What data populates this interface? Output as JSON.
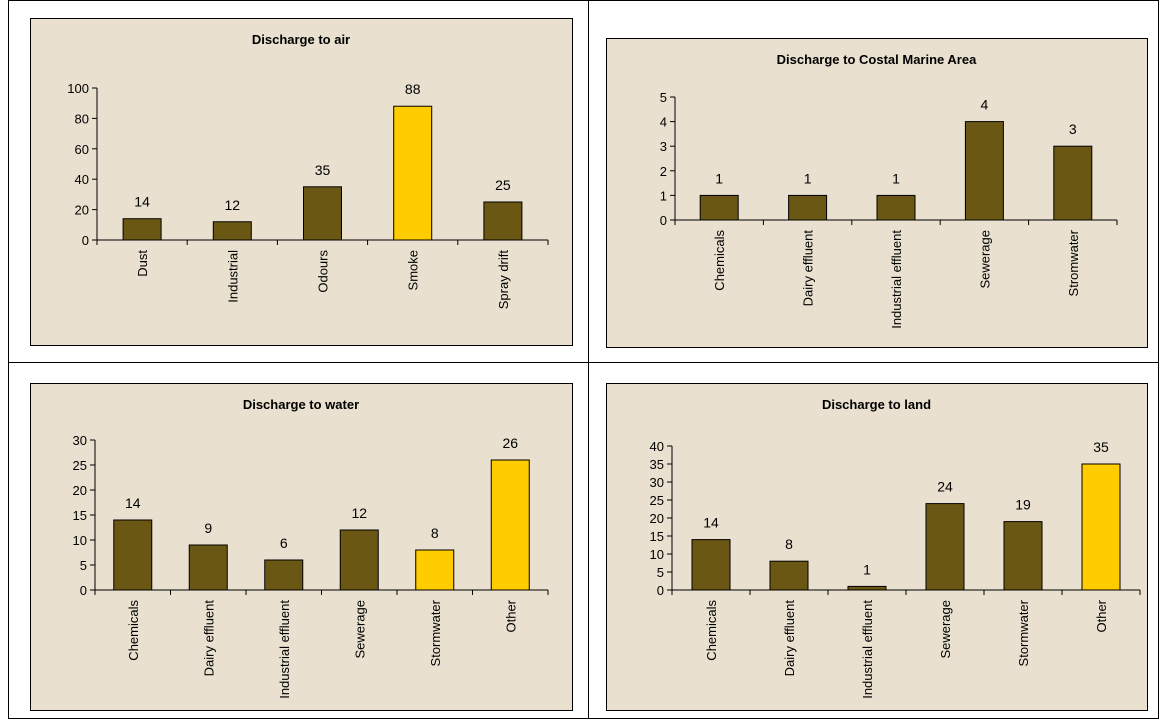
{
  "chart_data": [
    {
      "type": "bar",
      "title": "Discharge to air",
      "categories": [
        "Dust",
        "Industrial",
        "Odours",
        "Smoke",
        "Spray drift"
      ],
      "values": [
        14,
        12,
        35,
        88,
        25
      ],
      "colors": [
        "#6b5714",
        "#6b5714",
        "#6b5714",
        "#ffcc00",
        "#6b5714"
      ],
      "ylim": [
        0,
        100
      ],
      "yticks": [
        0,
        20,
        40,
        60,
        80,
        100
      ]
    },
    {
      "type": "bar",
      "title": "Discharge to Costal Marine Area",
      "categories": [
        "Chemicals",
        "Dairy effluent",
        "Industrial effluent",
        "Sewerage",
        "Stromwater"
      ],
      "values": [
        1,
        1,
        1,
        4,
        3
      ],
      "colors": [
        "#6b5714",
        "#6b5714",
        "#6b5714",
        "#6b5714",
        "#6b5714"
      ],
      "ylim": [
        0,
        5
      ],
      "yticks": [
        0,
        1,
        2,
        3,
        4,
        5
      ]
    },
    {
      "type": "bar",
      "title": "Discharge to water",
      "categories": [
        "Chemicals",
        "Dairy effluent",
        "Industrial effluent",
        "Sewerage",
        "Stormwater",
        "Other"
      ],
      "values": [
        14,
        9,
        6,
        12,
        8,
        26
      ],
      "colors": [
        "#6b5714",
        "#6b5714",
        "#6b5714",
        "#6b5714",
        "#ffcc00",
        "#ffcc00"
      ],
      "ylim": [
        0,
        30
      ],
      "yticks": [
        0,
        5,
        10,
        15,
        20,
        25,
        30
      ]
    },
    {
      "type": "bar",
      "title": "Discharge to land",
      "categories": [
        "Chemicals",
        "Dairy effluent",
        "Industrial effluent",
        "Sewerage",
        "Stormwater",
        "Other"
      ],
      "values": [
        14,
        8,
        1,
        24,
        19,
        35
      ],
      "colors": [
        "#6b5714",
        "#6b5714",
        "#6b5714",
        "#6b5714",
        "#6b5714",
        "#ffcc00"
      ],
      "ylim": [
        0,
        40
      ],
      "yticks": [
        0,
        5,
        10,
        15,
        20,
        25,
        30,
        35,
        40
      ]
    }
  ]
}
